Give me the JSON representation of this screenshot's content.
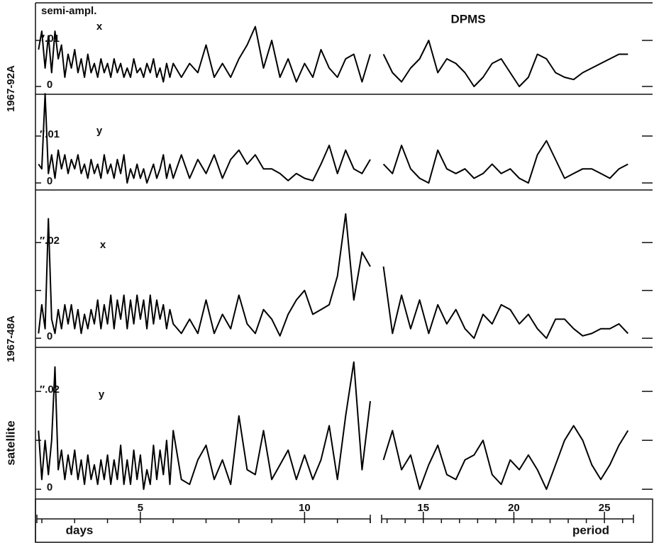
{
  "figure": {
    "title": "DPMS",
    "y_label": "semi-ampl.",
    "side_labels": [
      "1967-92A",
      "1967-48A",
      "satellite"
    ],
    "x_unit": "days",
    "x_label": "period"
  },
  "x_axis": {
    "xlim": [
      1.85,
      12.0
    ],
    "x2lim": [
      12.7,
      26.6
    ],
    "xticks": [
      5,
      10
    ],
    "x2ticks": [
      15,
      20,
      25
    ],
    "minor_xticks": [
      2,
      3,
      4,
      6,
      7,
      8,
      9,
      11,
      12
    ],
    "minor_x2ticks": [
      13,
      14,
      16,
      17,
      18,
      19,
      21,
      22,
      23,
      24,
      26
    ]
  },
  "chart_data": [
    {
      "type": "line",
      "label": "x",
      "color": "#000000",
      "ylim": [
        -0.0017,
        0.018
      ],
      "yticks": [
        0,
        {
          "value": 0.01,
          "label": "″.01"
        }
      ],
      "minor_yticks": [],
      "segments": [
        {
          "x": [
            1.9,
            2.0,
            2.1,
            2.2,
            2.3,
            2.4,
            2.5,
            2.6,
            2.7,
            2.8,
            2.9,
            3.0,
            3.1,
            3.2,
            3.3,
            3.4,
            3.5,
            3.6,
            3.7,
            3.8,
            3.9,
            4.0,
            4.1,
            4.2,
            4.3,
            4.4,
            4.5,
            4.6,
            4.7,
            4.8,
            4.9,
            5.0,
            5.1,
            5.2,
            5.3,
            5.4,
            5.5,
            5.6,
            5.7,
            5.8,
            5.9,
            6.0,
            6.25,
            6.5,
            6.75,
            7.0,
            7.25,
            7.5,
            7.75,
            8.0,
            8.25,
            8.5,
            8.75,
            9.0,
            9.25,
            9.5,
            9.75,
            10.0,
            10.25,
            10.5,
            10.75,
            11.0,
            11.25,
            11.5,
            11.75,
            12.0
          ],
          "values": [
            0.008,
            0.012,
            0.004,
            0.011,
            0.003,
            0.012,
            0.006,
            0.009,
            0.002,
            0.007,
            0.004,
            0.008,
            0.003,
            0.006,
            0.002,
            0.007,
            0.003,
            0.005,
            0.002,
            0.006,
            0.003,
            0.005,
            0.002,
            0.006,
            0.003,
            0.005,
            0.002,
            0.004,
            0.002,
            0.006,
            0.003,
            0.004,
            0.002,
            0.005,
            0.003,
            0.006,
            0.002,
            0.004,
            0.001,
            0.005,
            0.002,
            0.005,
            0.002,
            0.005,
            0.003,
            0.009,
            0.002,
            0.005,
            0.002,
            0.006,
            0.009,
            0.013,
            0.004,
            0.01,
            0.002,
            0.006,
            0.001,
            0.005,
            0.002,
            0.008,
            0.004,
            0.002,
            0.006,
            0.007,
            0.001,
            0.007
          ]
        },
        {
          "x": [
            12.8,
            13.3,
            13.8,
            14.3,
            14.8,
            15.3,
            15.8,
            16.3,
            16.8,
            17.3,
            17.8,
            18.3,
            18.8,
            19.3,
            19.8,
            20.3,
            20.8,
            21.3,
            21.8,
            22.3,
            22.8,
            23.3,
            23.8,
            24.3,
            24.8,
            25.3,
            25.8,
            26.3
          ],
          "values": [
            0.007,
            0.003,
            0.001,
            0.004,
            0.006,
            0.01,
            0.003,
            0.006,
            0.005,
            0.003,
            0,
            0.002,
            0.005,
            0.006,
            0.003,
            0,
            0.002,
            0.007,
            0.006,
            0.003,
            0.002,
            0.0015,
            0.003,
            0.004,
            0.005,
            0.006,
            0.007,
            0.007
          ]
        }
      ]
    },
    {
      "type": "line",
      "label": "y",
      "color": "#000000",
      "ylim": [
        -0.0015,
        0.0189
      ],
      "yticks": [
        0,
        {
          "value": 0.01,
          "label": "″.01"
        }
      ],
      "minor_yticks": [],
      "segments": [
        {
          "x": [
            1.9,
            2.0,
            2.1,
            2.2,
            2.3,
            2.4,
            2.5,
            2.6,
            2.7,
            2.8,
            2.9,
            3.0,
            3.1,
            3.2,
            3.3,
            3.4,
            3.5,
            3.6,
            3.7,
            3.8,
            3.9,
            4.0,
            4.1,
            4.2,
            4.3,
            4.4,
            4.5,
            4.6,
            4.7,
            4.8,
            4.9,
            5.0,
            5.1,
            5.2,
            5.3,
            5.4,
            5.5,
            5.6,
            5.7,
            5.8,
            5.9,
            6.0,
            6.25,
            6.5,
            6.75,
            7.0,
            7.25,
            7.5,
            7.75,
            8.0,
            8.25,
            8.5,
            8.75,
            9.0,
            9.25,
            9.5,
            9.75,
            10.0,
            10.25,
            10.5,
            10.75,
            11.0,
            11.25,
            11.5,
            11.75,
            12.0
          ],
          "values": [
            0.004,
            0.003,
            0.019,
            0.002,
            0.006,
            0.001,
            0.007,
            0.003,
            0.006,
            0.002,
            0.005,
            0.003,
            0.006,
            0.002,
            0.004,
            0.001,
            0.005,
            0.002,
            0.004,
            0.001,
            0.006,
            0.002,
            0.004,
            0.001,
            0.005,
            0.002,
            0.006,
            0,
            0.003,
            0.001,
            0.004,
            0.001,
            0.003,
            0,
            0.002,
            0.004,
            0.001,
            0.003,
            0.006,
            0.001,
            0.004,
            0.001,
            0.006,
            0.001,
            0.005,
            0.002,
            0.006,
            0.001,
            0.005,
            0.007,
            0.004,
            0.006,
            0.003,
            0.003,
            0.002,
            0.0005,
            0.002,
            0.001,
            0.0005,
            0.004,
            0.008,
            0.002,
            0.007,
            0.003,
            0.002,
            0.005
          ]
        },
        {
          "x": [
            12.8,
            13.3,
            13.8,
            14.3,
            14.8,
            15.3,
            15.8,
            16.3,
            16.8,
            17.3,
            17.8,
            18.3,
            18.8,
            19.3,
            19.8,
            20.3,
            20.8,
            21.3,
            21.8,
            22.3,
            22.8,
            23.3,
            23.8,
            24.3,
            24.8,
            25.3,
            25.8,
            26.3
          ],
          "values": [
            0.004,
            0.002,
            0.008,
            0.003,
            0.001,
            0,
            0.007,
            0.003,
            0.002,
            0.003,
            0.001,
            0.002,
            0.004,
            0.002,
            0.003,
            0.001,
            0,
            0.006,
            0.009,
            0.005,
            0.001,
            0.002,
            0.003,
            0.003,
            0.002,
            0.001,
            0.003,
            0.004
          ]
        }
      ]
    },
    {
      "type": "line",
      "label": "x",
      "color": "#000000",
      "ylim": [
        -0.0019,
        0.031
      ],
      "yticks": [
        0,
        {
          "value": 0.02,
          "label": "″.02"
        }
      ],
      "minor_yticks": [
        0.01
      ],
      "segments": [
        {
          "x": [
            1.9,
            2.0,
            2.1,
            2.2,
            2.3,
            2.4,
            2.5,
            2.6,
            2.7,
            2.8,
            2.9,
            3.0,
            3.1,
            3.2,
            3.3,
            3.4,
            3.5,
            3.6,
            3.7,
            3.8,
            3.9,
            4.0,
            4.1,
            4.2,
            4.3,
            4.4,
            4.5,
            4.6,
            4.7,
            4.8,
            4.9,
            5.0,
            5.1,
            5.2,
            5.3,
            5.4,
            5.5,
            5.6,
            5.7,
            5.8,
            5.9,
            6.0,
            6.25,
            6.5,
            6.75,
            7.0,
            7.25,
            7.5,
            7.75,
            8.0,
            8.25,
            8.5,
            8.75,
            9.0,
            9.25,
            9.5,
            9.75,
            10.0,
            10.25,
            10.5,
            10.75,
            11.0,
            11.25,
            11.5,
            11.75,
            12.0
          ],
          "values": [
            0.001,
            0.007,
            0.002,
            0.025,
            0.004,
            0.001,
            0.006,
            0.002,
            0.007,
            0.003,
            0.007,
            0.002,
            0.006,
            0.001,
            0.005,
            0.002,
            0.006,
            0.003,
            0.008,
            0.002,
            0.007,
            0.003,
            0.009,
            0.002,
            0.008,
            0.004,
            0.009,
            0.002,
            0.008,
            0.003,
            0.009,
            0.004,
            0.008,
            0.002,
            0.009,
            0.003,
            0.008,
            0.004,
            0.007,
            0.002,
            0.006,
            0.003,
            0.001,
            0.004,
            0.001,
            0.008,
            0.001,
            0.005,
            0.002,
            0.009,
            0.003,
            0.001,
            0.006,
            0.004,
            0.0005,
            0.005,
            0.008,
            0.01,
            0.005,
            0.006,
            0.007,
            0.013,
            0.026,
            0.008,
            0.018,
            0.015
          ]
        },
        {
          "x": [
            12.8,
            13.3,
            13.8,
            14.3,
            14.8,
            15.3,
            15.8,
            16.3,
            16.8,
            17.3,
            17.8,
            18.3,
            18.8,
            19.3,
            19.8,
            20.3,
            20.8,
            21.3,
            21.8,
            22.3,
            22.8,
            23.3,
            23.8,
            24.3,
            24.8,
            25.3,
            25.8,
            26.3
          ],
          "values": [
            0.015,
            0.001,
            0.009,
            0.002,
            0.008,
            0.001,
            0.007,
            0.003,
            0.006,
            0.002,
            0,
            0.005,
            0.003,
            0.007,
            0.006,
            0.003,
            0.005,
            0.002,
            0,
            0.004,
            0.004,
            0.002,
            0.0005,
            0.001,
            0.002,
            0.002,
            0.003,
            0.001
          ]
        }
      ]
    },
    {
      "type": "line",
      "label": "y",
      "color": "#000000",
      "ylim": [
        -0.002,
        0.029
      ],
      "yticks": [
        0,
        {
          "value": 0.02,
          "label": "″.02"
        }
      ],
      "minor_yticks": [
        0.01
      ],
      "segments": [
        {
          "x": [
            1.9,
            2.0,
            2.1,
            2.2,
            2.3,
            2.4,
            2.5,
            2.6,
            2.7,
            2.8,
            2.9,
            3.0,
            3.1,
            3.2,
            3.3,
            3.4,
            3.5,
            3.6,
            3.7,
            3.8,
            3.9,
            4.0,
            4.1,
            4.2,
            4.3,
            4.4,
            4.5,
            4.6,
            4.7,
            4.8,
            4.9,
            5.0,
            5.1,
            5.2,
            5.3,
            5.4,
            5.5,
            5.6,
            5.7,
            5.8,
            5.9,
            6.0,
            6.25,
            6.5,
            6.75,
            7.0,
            7.25,
            7.5,
            7.75,
            8.0,
            8.25,
            8.5,
            8.75,
            9.0,
            9.25,
            9.5,
            9.75,
            10.0,
            10.25,
            10.5,
            10.75,
            11.0,
            11.25,
            11.5,
            11.75,
            12.0
          ],
          "values": [
            0.012,
            0.002,
            0.01,
            0.003,
            0.01,
            0.025,
            0.004,
            0.008,
            0.002,
            0.007,
            0.003,
            0.008,
            0.002,
            0.006,
            0.001,
            0.007,
            0.002,
            0.005,
            0.001,
            0.006,
            0.002,
            0.007,
            0.001,
            0.006,
            0.002,
            0.009,
            0.001,
            0.006,
            0.001,
            0.008,
            0.002,
            0.007,
            0,
            0.004,
            0.001,
            0.009,
            0.002,
            0.008,
            0.003,
            0.01,
            0.001,
            0.012,
            0.002,
            0.001,
            0.006,
            0.009,
            0.002,
            0.006,
            0.001,
            0.015,
            0.004,
            0.003,
            0.012,
            0.002,
            0.005,
            0.008,
            0.002,
            0.007,
            0.002,
            0.006,
            0.013,
            0.002,
            0.015,
            0.026,
            0.004,
            0.018
          ]
        },
        {
          "x": [
            12.8,
            13.3,
            13.8,
            14.3,
            14.8,
            15.3,
            15.8,
            16.3,
            16.8,
            17.3,
            17.8,
            18.3,
            18.8,
            19.3,
            19.8,
            20.3,
            20.8,
            21.3,
            21.8,
            22.3,
            22.8,
            23.3,
            23.8,
            24.3,
            24.8,
            25.3,
            25.8,
            26.3
          ],
          "values": [
            0.006,
            0.012,
            0.004,
            0.007,
            0,
            0.005,
            0.009,
            0.003,
            0.002,
            0.006,
            0.007,
            0.01,
            0.003,
            0.001,
            0.006,
            0.004,
            0.007,
            0.004,
            0,
            0.005,
            0.01,
            0.013,
            0.01,
            0.005,
            0.002,
            0.005,
            0.009,
            0.012
          ]
        }
      ]
    }
  ]
}
